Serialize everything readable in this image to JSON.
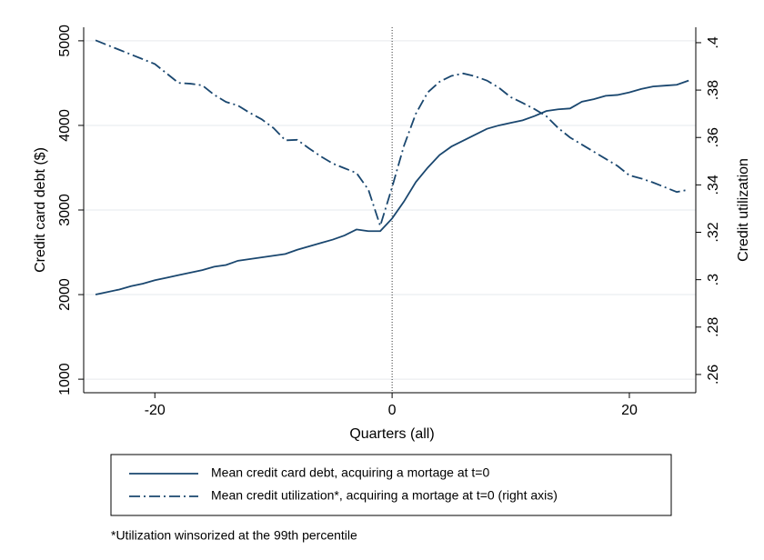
{
  "chart_data": {
    "type": "line",
    "x_label": "Quarters (all)",
    "y_label": "Credit card debt ($)",
    "y2_label": "Credit utilization",
    "note": "*Utilization winsorized at the 99th percentile",
    "x": [
      -25,
      -24,
      -23,
      -22,
      -21,
      -20,
      -19,
      -18,
      -17,
      -16,
      -15,
      -14,
      -13,
      -12,
      -11,
      -10,
      -9,
      -8,
      -7,
      -6,
      -5,
      -4,
      -3,
      -2,
      -1,
      0,
      1,
      2,
      3,
      4,
      5,
      6,
      7,
      8,
      9,
      10,
      11,
      12,
      13,
      14,
      15,
      16,
      17,
      18,
      19,
      20,
      21,
      22,
      23,
      24,
      25
    ],
    "series": [
      {
        "name": "Mean credit card debt, acquiring a mortage at t=0",
        "color": "#1a476f",
        "dash": "solid",
        "values": [
          2000,
          2030,
          2060,
          2100,
          2130,
          2170,
          2200,
          2230,
          2260,
          2290,
          2330,
          2350,
          2400,
          2420,
          2440,
          2460,
          2480,
          2530,
          2570,
          2610,
          2650,
          2700,
          2770,
          2750,
          2750,
          2900,
          3100,
          3330,
          3500,
          3650,
          3750,
          3820,
          3890,
          3960,
          4000,
          4030,
          4060,
          4110,
          4170,
          4190,
          4200,
          4280,
          4310,
          4350,
          4360,
          4390,
          4430,
          4460,
          4470,
          4480,
          4530
        ]
      },
      {
        "name": "Mean credit utilization*, acquiring a mortage at t=0 (right axis)",
        "color": "#1a476f",
        "dash": "dashdot",
        "axis": "y2",
        "values": [
          0.401,
          0.399,
          0.397,
          0.395,
          0.393,
          0.391,
          0.387,
          0.383,
          0.3827,
          0.382,
          0.378,
          0.375,
          0.3735,
          0.3704,
          0.3677,
          0.364,
          0.3588,
          0.359,
          0.3554,
          0.352,
          0.349,
          0.347,
          0.345,
          0.338,
          0.3227,
          0.339,
          0.3565,
          0.37,
          0.379,
          0.3835,
          0.386,
          0.387,
          0.3858,
          0.384,
          0.381,
          0.377,
          0.3746,
          0.372,
          0.369,
          0.364,
          0.36,
          0.357,
          0.354,
          0.351,
          0.348,
          0.344,
          0.3427,
          0.341,
          0.339,
          0.337,
          0.338
        ]
      }
    ],
    "xlim": [
      -26,
      25.6
    ],
    "xticks": [
      -20,
      0,
      20
    ],
    "ylim": [
      840,
      5160
    ],
    "yticks": [
      1000,
      2000,
      3000,
      4000,
      5000
    ],
    "y2lim": [
      0.2523,
      0.4065
    ],
    "y2ticks": [
      {
        "value": 0.26,
        "label": ".26"
      },
      {
        "value": 0.28,
        "label": ".28"
      },
      {
        "value": 0.3,
        "label": ".3"
      },
      {
        "value": 0.32,
        "label": ".32"
      },
      {
        "value": 0.34,
        "label": ".34"
      },
      {
        "value": 0.36,
        "label": ".36"
      },
      {
        "value": 0.38,
        "label": ".38"
      },
      {
        "value": 0.4,
        "label": ".4"
      }
    ],
    "vline_x": 0,
    "grid": true,
    "legend": "bottom"
  }
}
